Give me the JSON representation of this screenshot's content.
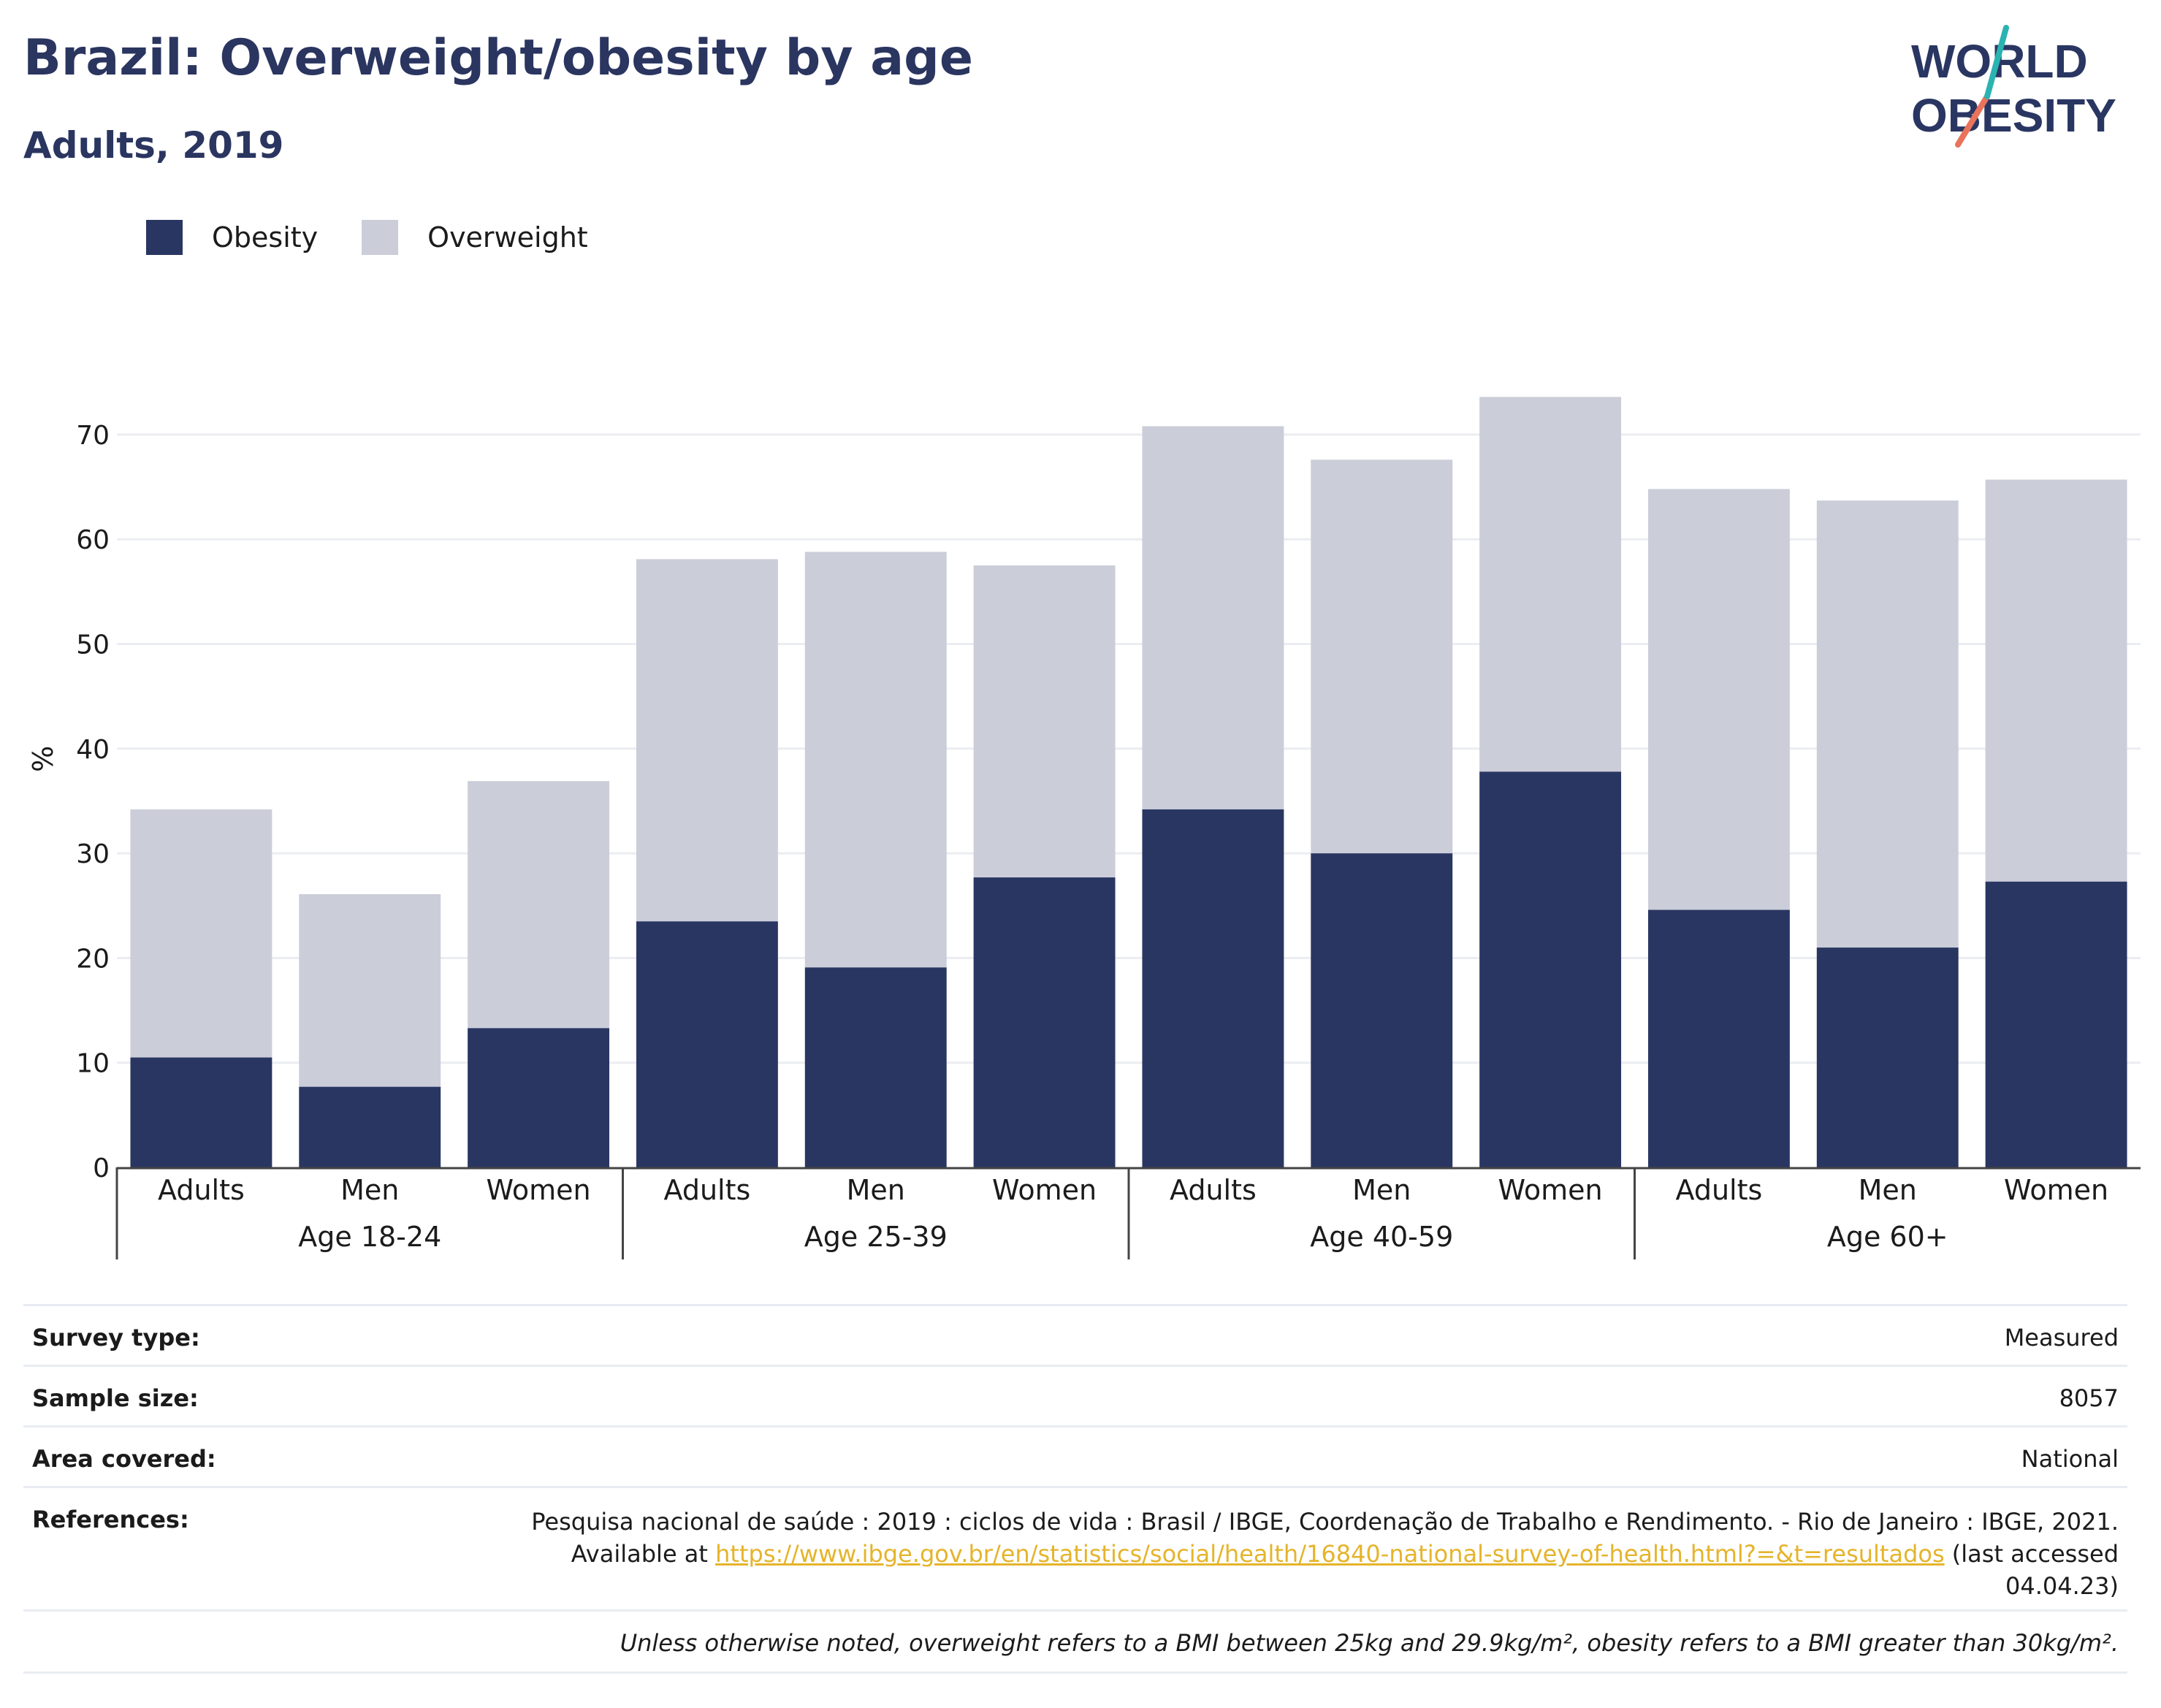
{
  "header": {
    "title": "Brazil: Overweight/obesity by age",
    "subtitle": "Adults, 2019"
  },
  "logo": {
    "line1": "WORLD",
    "line2": "OBESITY"
  },
  "colors": {
    "obesity": "#2a3662",
    "overweight": "#cbcdd9",
    "accent_teal": "#2ab3b1",
    "accent_coral": "#e9735b",
    "link": "#e5b42b"
  },
  "chart_data": {
    "type": "bar",
    "stacked": true,
    "ylabel": "%",
    "ylim": [
      0,
      75
    ],
    "yticks": [
      0,
      10,
      20,
      30,
      40,
      50,
      60,
      70
    ],
    "grid": true,
    "legend_position": "top-left",
    "groups": [
      {
        "label": "Age 18-24",
        "categories": [
          "Adults",
          "Men",
          "Women"
        ]
      },
      {
        "label": "Age 25-39",
        "categories": [
          "Adults",
          "Men",
          "Women"
        ]
      },
      {
        "label": "Age 40-59",
        "categories": [
          "Adults",
          "Men",
          "Women"
        ]
      },
      {
        "label": "Age 60+",
        "categories": [
          "Adults",
          "Men",
          "Women"
        ]
      }
    ],
    "series": [
      {
        "name": "Obesity",
        "values": [
          10.5,
          7.7,
          13.3,
          23.5,
          19.1,
          27.7,
          34.2,
          30.0,
          37.8,
          24.6,
          21.0,
          27.3
        ]
      },
      {
        "name": "Overweight",
        "values": [
          23.7,
          18.4,
          23.6,
          34.6,
          39.7,
          29.8,
          36.6,
          37.6,
          35.8,
          40.2,
          42.7,
          38.4
        ]
      }
    ]
  },
  "info": {
    "survey_type_label": "Survey type:",
    "survey_type_value": "Measured",
    "sample_size_label": "Sample size:",
    "sample_size_value": "8057",
    "area_label": "Area covered:",
    "area_value": "National",
    "references_label": "References:",
    "references_line1": "Pesquisa nacional de saúde : 2019 : ciclos de vida : Brasil / IBGE, Coordenação de Trabalho e Rendimento. - Rio de Janeiro : IBGE, 2021.",
    "references_prefix": "Available at",
    "references_url": "https://www.ibge.gov.br/en/statistics/social/health/16840-national-survey-of-health.html?=&t=resultados",
    "references_suffix": "(last accessed",
    "references_date": "04.04.23)",
    "note": "Unless otherwise noted, overweight refers to a BMI between 25kg and 29.9kg/m², obesity refers to a BMI greater than 30kg/m²."
  }
}
